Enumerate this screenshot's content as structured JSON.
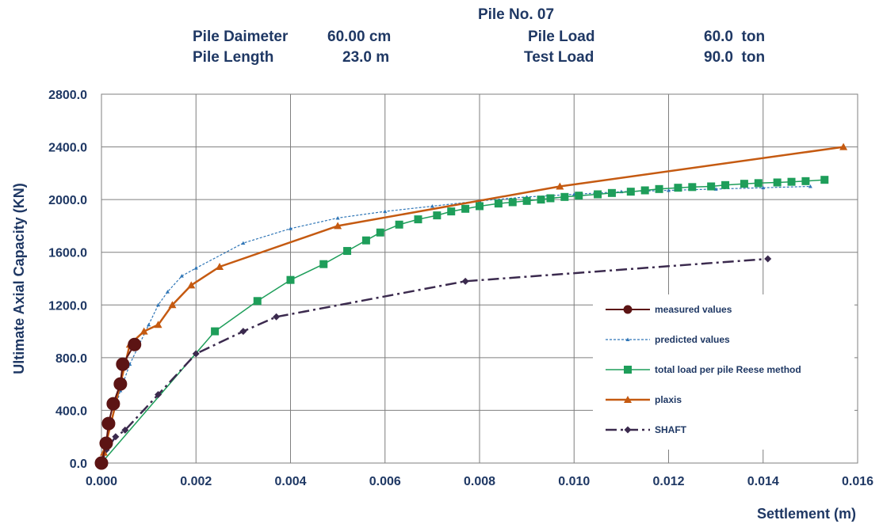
{
  "header": {
    "title": "Pile No. 07",
    "row1": {
      "l1": "Pile Daimeter",
      "v1": "60.00 cm",
      "l2": "Pile Load",
      "v2": "60.0  ton"
    },
    "row2": {
      "l1": "Pile Length",
      "v1": "23.0 m",
      "l2": "Test Load",
      "v2": "90.0  ton"
    }
  },
  "chart_data": {
    "type": "line",
    "title": "Pile No. 07",
    "xlabel": "Settlement (m)",
    "ylabel": "Ultimate Axial Capacity (KN)",
    "xlim": [
      0,
      0.016
    ],
    "ylim": [
      0,
      2800
    ],
    "xticks": [
      0,
      0.002,
      0.004,
      0.006,
      0.008,
      0.01,
      0.012,
      0.014,
      0.016
    ],
    "yticks": [
      0,
      400,
      800,
      1200,
      1600,
      2000,
      2400,
      2800
    ],
    "xtick_labels": [
      "0.000",
      "0.002",
      "0.004",
      "0.006",
      "0.008",
      "0.010",
      "0.012",
      "0.014",
      "0.016"
    ],
    "ytick_labels": [
      "0.0",
      "400.0",
      "800.0",
      "1200.0",
      "1600.0",
      "2000.0",
      "2400.0",
      "2800.0"
    ],
    "grid": true,
    "legend_position": "lower-right",
    "series": [
      {
        "name": "measured values",
        "color": "#5c1414",
        "marker": "circle",
        "x": [
          0,
          0.0001,
          0.00015,
          0.00025,
          0.0004,
          0.00045,
          0.0007
        ],
        "y": [
          0,
          150,
          300,
          450,
          600,
          750,
          900
        ]
      },
      {
        "name": "predicted values",
        "color": "#2e75b6",
        "marker": "small-triangle",
        "x": [
          0,
          0.0002,
          0.0004,
          0.0006,
          0.0008,
          0.001,
          0.0012,
          0.0014,
          0.0017,
          0.002,
          0.003,
          0.004,
          0.005,
          0.006,
          0.007,
          0.008,
          0.009,
          0.01,
          0.011,
          0.012,
          0.013,
          0.014,
          0.015
        ],
        "y": [
          0,
          300,
          550,
          750,
          900,
          1050,
          1200,
          1300,
          1420,
          1480,
          1670,
          1780,
          1860,
          1910,
          1950,
          1990,
          2020,
          2040,
          2060,
          2070,
          2080,
          2090,
          2100
        ]
      },
      {
        "name": "total load per pile Reese method",
        "color": "#1e9e5a",
        "marker": "square",
        "x": [
          0,
          0.0024,
          0.0033,
          0.004,
          0.0047,
          0.0052,
          0.0056,
          0.0059,
          0.0063,
          0.0067,
          0.0071,
          0.0074,
          0.0077,
          0.008,
          0.0084,
          0.0087,
          0.009,
          0.0093,
          0.0095,
          0.0098,
          0.0101,
          0.0105,
          0.0108,
          0.0112,
          0.0115,
          0.0118,
          0.0122,
          0.0125,
          0.0129,
          0.0132,
          0.0136,
          0.0139,
          0.0143,
          0.0146,
          0.0149,
          0.0153
        ],
        "y": [
          0,
          1000,
          1230,
          1390,
          1510,
          1610,
          1690,
          1750,
          1810,
          1850,
          1880,
          1910,
          1930,
          1950,
          1970,
          1980,
          1990,
          2000,
          2010,
          2020,
          2030,
          2040,
          2050,
          2060,
          2070,
          2080,
          2090,
          2095,
          2100,
          2110,
          2120,
          2125,
          2130,
          2135,
          2140,
          2150
        ]
      },
      {
        "name": "plaxis",
        "color": "#c55a11",
        "marker": "triangle",
        "x": [
          0,
          5e-05,
          0.0001,
          0.0002,
          0.0003,
          0.0004,
          0.0005,
          0.0006,
          0.0009,
          0.0012,
          0.0015,
          0.0019,
          0.0025,
          0.005,
          0.0097,
          0.0157
        ],
        "y": [
          0,
          80,
          150,
          300,
          450,
          600,
          750,
          900,
          1000,
          1050,
          1200,
          1350,
          1490,
          1800,
          2100,
          2400
        ]
      },
      {
        "name": "SHAFT",
        "color": "#3b2a4e",
        "marker": "diamond",
        "x": [
          0,
          0.0001,
          0.0003,
          0.0005,
          0.0012,
          0.002,
          0.003,
          0.0037,
          0.0077,
          0.0141
        ],
        "y": [
          0,
          100,
          200,
          250,
          520,
          830,
          1000,
          1110,
          1380,
          1550
        ]
      }
    ]
  }
}
